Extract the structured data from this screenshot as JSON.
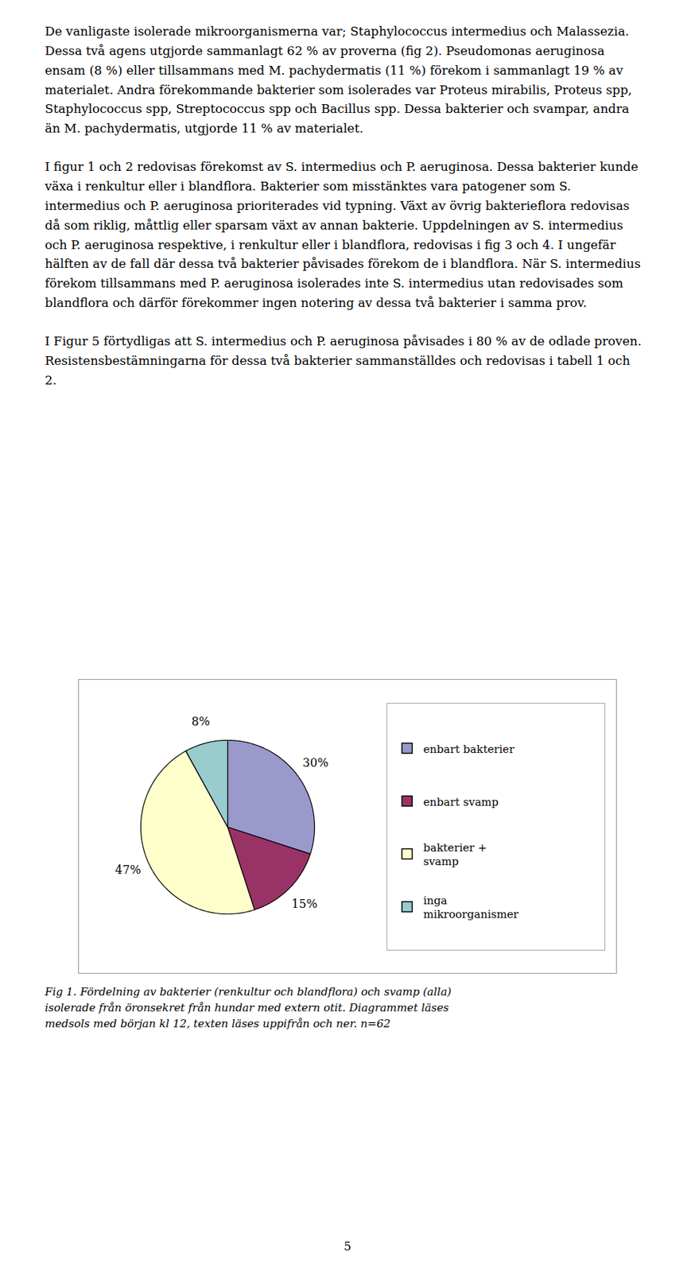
{
  "chart_data": {
    "type": "pie",
    "categories": [
      "enbart bakterier",
      "enbart svamp",
      "bakterier +\nsvamp",
      "inga\nmikroorganismer"
    ],
    "values": [
      30,
      15,
      47,
      8
    ],
    "value_labels": [
      "30%",
      "15%",
      "47%",
      "8%"
    ],
    "colors": [
      "#9999cc",
      "#993366",
      "#ffffcc",
      "#99cccc"
    ],
    "data_labels": true,
    "legend": "right",
    "caption": "Fig 1. Fördelning av bakterier (renkultur och blandflora) och svamp (alla)\nisolerade från öronsekret från hundar med extern otit. Diagrammet läses\nmedsols med början kl 12, texten läses uppifrån och ner. n=62",
    "annotations": [
      "De vanligaste isolerade mikroorganismerna var; Staphylococcus intermedius och Malassezia. Dessa två agens utgjorde sammanlagt 62 % av proverna (fig 2). Pseudomonas aeruginosa ensam (8 %) eller tillsammans med M. pachydermatis (11 %) förekom i sammanlagt 19 % av materialet. Andra förekommande bakterier som isolerades var Proteus mirabilis, Proteus spp, Staphylococcus spp, Streptococcus spp och Bacillus spp. Dessa bakterier och svampar, andra än M. pachydermatis, utgjorde 11 % av materialet.",
      "I figur 1 och 2 redovisas förekomst av S. intermedius och P. aeruginosa. Dessa bakterier kunde växa i renkultur eller i blandflora. Bakterier som misstänktes vara patogener som S. intermedius och P. aeruginosa prioriterades vid typning. Växt av övrig bakterieflora redovisas då som riklig, måttlig eller sparsam växt av annan bakterie. Uppdelningen av S. intermedius och P. aeruginosa respektive, i renkultur eller i blandflora, redovisas i fig 3 och 4. I ungefär hälften av de fall där dessa två bakterier påvisades förekom de i blandflora. När S. intermedius förekom tillsammans med P. aeruginosa isolerades inte S. intermedius utan redovisades som blandflora och därför förekommer ingen notering av dessa två bakterier i samma prov.",
      "I Figur 5 förtydligas att S. intermedius och P. aeruginosa påvisades i 80 % av de odlade proven. Resistensbestämningarna för dessa två bakterier sammanställdes och redovisas i tabell 1 och 2.",
      "5"
    ]
  }
}
